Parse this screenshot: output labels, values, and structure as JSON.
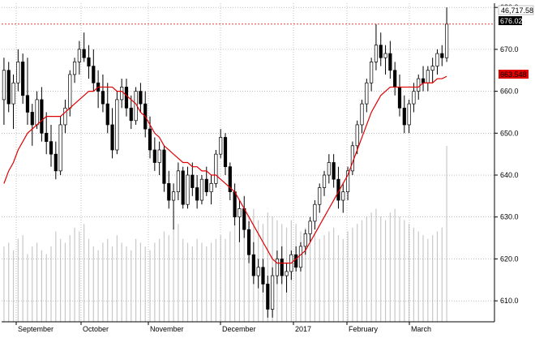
{
  "chart_data": {
    "type": "candlestick",
    "x_labels": [
      "September",
      "October",
      "November",
      "December",
      "2017",
      "February",
      "March"
    ],
    "y_ticks": [
      610,
      620,
      630,
      640,
      650,
      660,
      670,
      680
    ],
    "ylim": [
      605,
      681
    ],
    "price_labels": {
      "volume_value": "46,717.58",
      "last_price": "676.02",
      "moving_average": "663.548"
    },
    "last_price": 676.02,
    "moving_average_last": 663.548,
    "colors": {
      "up_candle": "#ffffff",
      "down_candle": "#000000",
      "moving_average": "#e00000",
      "volume": "#c8c8c8",
      "last_price_line": "#cc0000",
      "ma_label_bg": "#e00000",
      "price_label_bg": "#000000"
    },
    "grid": true,
    "candles": [
      {
        "o": 658,
        "h": 668,
        "l": 652,
        "c": 665
      },
      {
        "o": 665,
        "h": 667,
        "l": 655,
        "c": 657
      },
      {
        "o": 657,
        "h": 664,
        "l": 651,
        "c": 662
      },
      {
        "o": 662,
        "h": 670,
        "l": 660,
        "c": 667
      },
      {
        "o": 667,
        "h": 669,
        "l": 657,
        "c": 659
      },
      {
        "o": 659,
        "h": 668,
        "l": 652,
        "c": 655
      },
      {
        "o": 655,
        "h": 657,
        "l": 647,
        "c": 652
      },
      {
        "o": 652,
        "h": 660,
        "l": 651,
        "c": 658
      },
      {
        "o": 658,
        "h": 661,
        "l": 648,
        "c": 650
      },
      {
        "o": 650,
        "h": 655,
        "l": 645,
        "c": 648
      },
      {
        "o": 648,
        "h": 652,
        "l": 642,
        "c": 645
      },
      {
        "o": 645,
        "h": 648,
        "l": 639,
        "c": 641
      },
      {
        "o": 641,
        "h": 654,
        "l": 640,
        "c": 652
      },
      {
        "o": 652,
        "h": 658,
        "l": 650,
        "c": 656
      },
      {
        "o": 656,
        "h": 665,
        "l": 654,
        "c": 664
      },
      {
        "o": 664,
        "h": 668,
        "l": 662,
        "c": 667
      },
      {
        "o": 667,
        "h": 672,
        "l": 664,
        "c": 670
      },
      {
        "o": 670,
        "h": 674,
        "l": 667,
        "c": 668
      },
      {
        "o": 668,
        "h": 671,
        "l": 663,
        "c": 666
      },
      {
        "o": 666,
        "h": 670,
        "l": 660,
        "c": 662
      },
      {
        "o": 662,
        "h": 665,
        "l": 656,
        "c": 660
      },
      {
        "o": 660,
        "h": 664,
        "l": 655,
        "c": 657
      },
      {
        "o": 657,
        "h": 662,
        "l": 650,
        "c": 652
      },
      {
        "o": 652,
        "h": 656,
        "l": 644,
        "c": 646
      },
      {
        "o": 646,
        "h": 660,
        "l": 645,
        "c": 658
      },
      {
        "o": 658,
        "h": 663,
        "l": 656,
        "c": 661
      },
      {
        "o": 661,
        "h": 663,
        "l": 654,
        "c": 656
      },
      {
        "o": 656,
        "h": 659,
        "l": 651,
        "c": 653
      },
      {
        "o": 653,
        "h": 661,
        "l": 652,
        "c": 660
      },
      {
        "o": 660,
        "h": 662,
        "l": 655,
        "c": 657
      },
      {
        "o": 657,
        "h": 660,
        "l": 649,
        "c": 651
      },
      {
        "o": 651,
        "h": 654,
        "l": 644,
        "c": 646
      },
      {
        "o": 646,
        "h": 649,
        "l": 641,
        "c": 643
      },
      {
        "o": 643,
        "h": 648,
        "l": 640,
        "c": 646
      },
      {
        "o": 646,
        "h": 647,
        "l": 636,
        "c": 638
      },
      {
        "o": 638,
        "h": 641,
        "l": 632,
        "c": 634
      },
      {
        "o": 634,
        "h": 638,
        "l": 627,
        "c": 636
      },
      {
        "o": 636,
        "h": 643,
        "l": 634,
        "c": 641
      },
      {
        "o": 641,
        "h": 642,
        "l": 632,
        "c": 633
      },
      {
        "o": 633,
        "h": 642,
        "l": 632,
        "c": 640
      },
      {
        "o": 640,
        "h": 643,
        "l": 635,
        "c": 637
      },
      {
        "o": 637,
        "h": 640,
        "l": 632,
        "c": 634
      },
      {
        "o": 634,
        "h": 640,
        "l": 633,
        "c": 639
      },
      {
        "o": 639,
        "h": 642,
        "l": 635,
        "c": 636
      },
      {
        "o": 636,
        "h": 640,
        "l": 633,
        "c": 638
      },
      {
        "o": 638,
        "h": 646,
        "l": 637,
        "c": 645
      },
      {
        "o": 645,
        "h": 651,
        "l": 644,
        "c": 649
      },
      {
        "o": 649,
        "h": 650,
        "l": 640,
        "c": 642
      },
      {
        "o": 642,
        "h": 643,
        "l": 634,
        "c": 636
      },
      {
        "o": 636,
        "h": 638,
        "l": 628,
        "c": 630
      },
      {
        "o": 630,
        "h": 634,
        "l": 624,
        "c": 632
      },
      {
        "o": 632,
        "h": 635,
        "l": 625,
        "c": 627
      },
      {
        "o": 627,
        "h": 629,
        "l": 619,
        "c": 621
      },
      {
        "o": 621,
        "h": 624,
        "l": 614,
        "c": 616
      },
      {
        "o": 616,
        "h": 620,
        "l": 613,
        "c": 618
      },
      {
        "o": 618,
        "h": 620,
        "l": 612,
        "c": 614
      },
      {
        "o": 614,
        "h": 616,
        "l": 606,
        "c": 608
      },
      {
        "o": 608,
        "h": 618,
        "l": 606,
        "c": 616
      },
      {
        "o": 616,
        "h": 622,
        "l": 614,
        "c": 620
      },
      {
        "o": 620,
        "h": 623,
        "l": 614,
        "c": 616
      },
      {
        "o": 616,
        "h": 619,
        "l": 612,
        "c": 617
      },
      {
        "o": 617,
        "h": 622,
        "l": 615,
        "c": 621
      },
      {
        "o": 621,
        "h": 623,
        "l": 617,
        "c": 618
      },
      {
        "o": 618,
        "h": 624,
        "l": 617,
        "c": 623
      },
      {
        "o": 623,
        "h": 627,
        "l": 621,
        "c": 626
      },
      {
        "o": 626,
        "h": 630,
        "l": 624,
        "c": 629
      },
      {
        "o": 629,
        "h": 634,
        "l": 627,
        "c": 633
      },
      {
        "o": 633,
        "h": 638,
        "l": 631,
        "c": 637
      },
      {
        "o": 637,
        "h": 641,
        "l": 635,
        "c": 640
      },
      {
        "o": 640,
        "h": 645,
        "l": 638,
        "c": 643
      },
      {
        "o": 643,
        "h": 645,
        "l": 637,
        "c": 639
      },
      {
        "o": 639,
        "h": 642,
        "l": 632,
        "c": 634
      },
      {
        "o": 634,
        "h": 638,
        "l": 631,
        "c": 636
      },
      {
        "o": 636,
        "h": 642,
        "l": 634,
        "c": 641
      },
      {
        "o": 641,
        "h": 648,
        "l": 640,
        "c": 647
      },
      {
        "o": 647,
        "h": 653,
        "l": 645,
        "c": 652
      },
      {
        "o": 652,
        "h": 658,
        "l": 650,
        "c": 657
      },
      {
        "o": 657,
        "h": 663,
        "l": 655,
        "c": 662
      },
      {
        "o": 662,
        "h": 668,
        "l": 660,
        "c": 667
      },
      {
        "o": 667,
        "h": 676,
        "l": 665,
        "c": 671
      },
      {
        "o": 671,
        "h": 674,
        "l": 666,
        "c": 668
      },
      {
        "o": 668,
        "h": 671,
        "l": 664,
        "c": 669
      },
      {
        "o": 669,
        "h": 672,
        "l": 663,
        "c": 665
      },
      {
        "o": 665,
        "h": 667,
        "l": 659,
        "c": 661
      },
      {
        "o": 661,
        "h": 664,
        "l": 654,
        "c": 656
      },
      {
        "o": 656,
        "h": 659,
        "l": 650,
        "c": 652
      },
      {
        "o": 652,
        "h": 658,
        "l": 650,
        "c": 657
      },
      {
        "o": 657,
        "h": 662,
        "l": 655,
        "c": 660
      },
      {
        "o": 660,
        "h": 664,
        "l": 658,
        "c": 663
      },
      {
        "o": 663,
        "h": 666,
        "l": 660,
        "c": 662
      },
      {
        "o": 662,
        "h": 666,
        "l": 660,
        "c": 665
      },
      {
        "o": 665,
        "h": 668,
        "l": 662,
        "c": 666
      },
      {
        "o": 666,
        "h": 670,
        "l": 664,
        "c": 669
      },
      {
        "o": 669,
        "h": 671,
        "l": 666,
        "c": 668
      },
      {
        "o": 668,
        "h": 680,
        "l": 667,
        "c": 676.02
      }
    ],
    "moving_average": [
      638,
      641,
      643,
      646,
      648,
      650,
      651,
      652,
      653,
      654,
      654,
      654,
      654,
      655,
      656,
      657,
      658,
      659,
      660,
      660,
      661,
      661,
      661,
      661,
      660,
      660,
      659,
      658,
      657,
      655,
      654,
      652,
      650,
      649,
      647,
      646,
      645,
      644,
      643,
      643,
      642,
      642,
      641,
      641,
      640,
      640,
      639,
      638,
      637,
      636,
      634,
      632,
      630,
      628,
      626,
      624,
      622,
      620,
      619,
      619,
      619,
      619,
      620,
      621,
      622,
      624,
      626,
      628,
      630,
      632,
      634,
      636,
      638,
      640,
      643,
      646,
      649,
      652,
      655,
      657,
      659,
      660,
      661,
      661,
      661,
      661,
      661,
      661,
      661,
      662,
      662,
      662,
      663,
      663,
      663.548
    ],
    "volume": [
      20000,
      21000,
      19000,
      22000,
      23000,
      18000,
      20000,
      21000,
      19000,
      18000,
      20000,
      24000,
      22000,
      21000,
      23000,
      25000,
      24000,
      26000,
      22000,
      20000,
      19000,
      21000,
      22000,
      20000,
      23000,
      21000,
      20000,
      19000,
      22000,
      21000,
      20000,
      19000,
      21000,
      22000,
      24000,
      23000,
      25000,
      26000,
      22000,
      21000,
      20000,
      22000,
      21000,
      20000,
      21000,
      22000,
      23000,
      22000,
      24000,
      26000,
      27000,
      25000,
      28000,
      30000,
      27000,
      26000,
      29000,
      28000,
      27000,
      26000,
      25000,
      27000,
      26000,
      24000,
      25000,
      23000,
      24000,
      22000,
      23000,
      24000,
      25000,
      23000,
      22000,
      24000,
      25000,
      26000,
      27000,
      28000,
      29000,
      30000,
      28000,
      27000,
      29000,
      30000,
      28000,
      27000,
      26000,
      25000,
      24000,
      23000,
      22000,
      23000,
      24000,
      25000,
      46717.58
    ]
  }
}
